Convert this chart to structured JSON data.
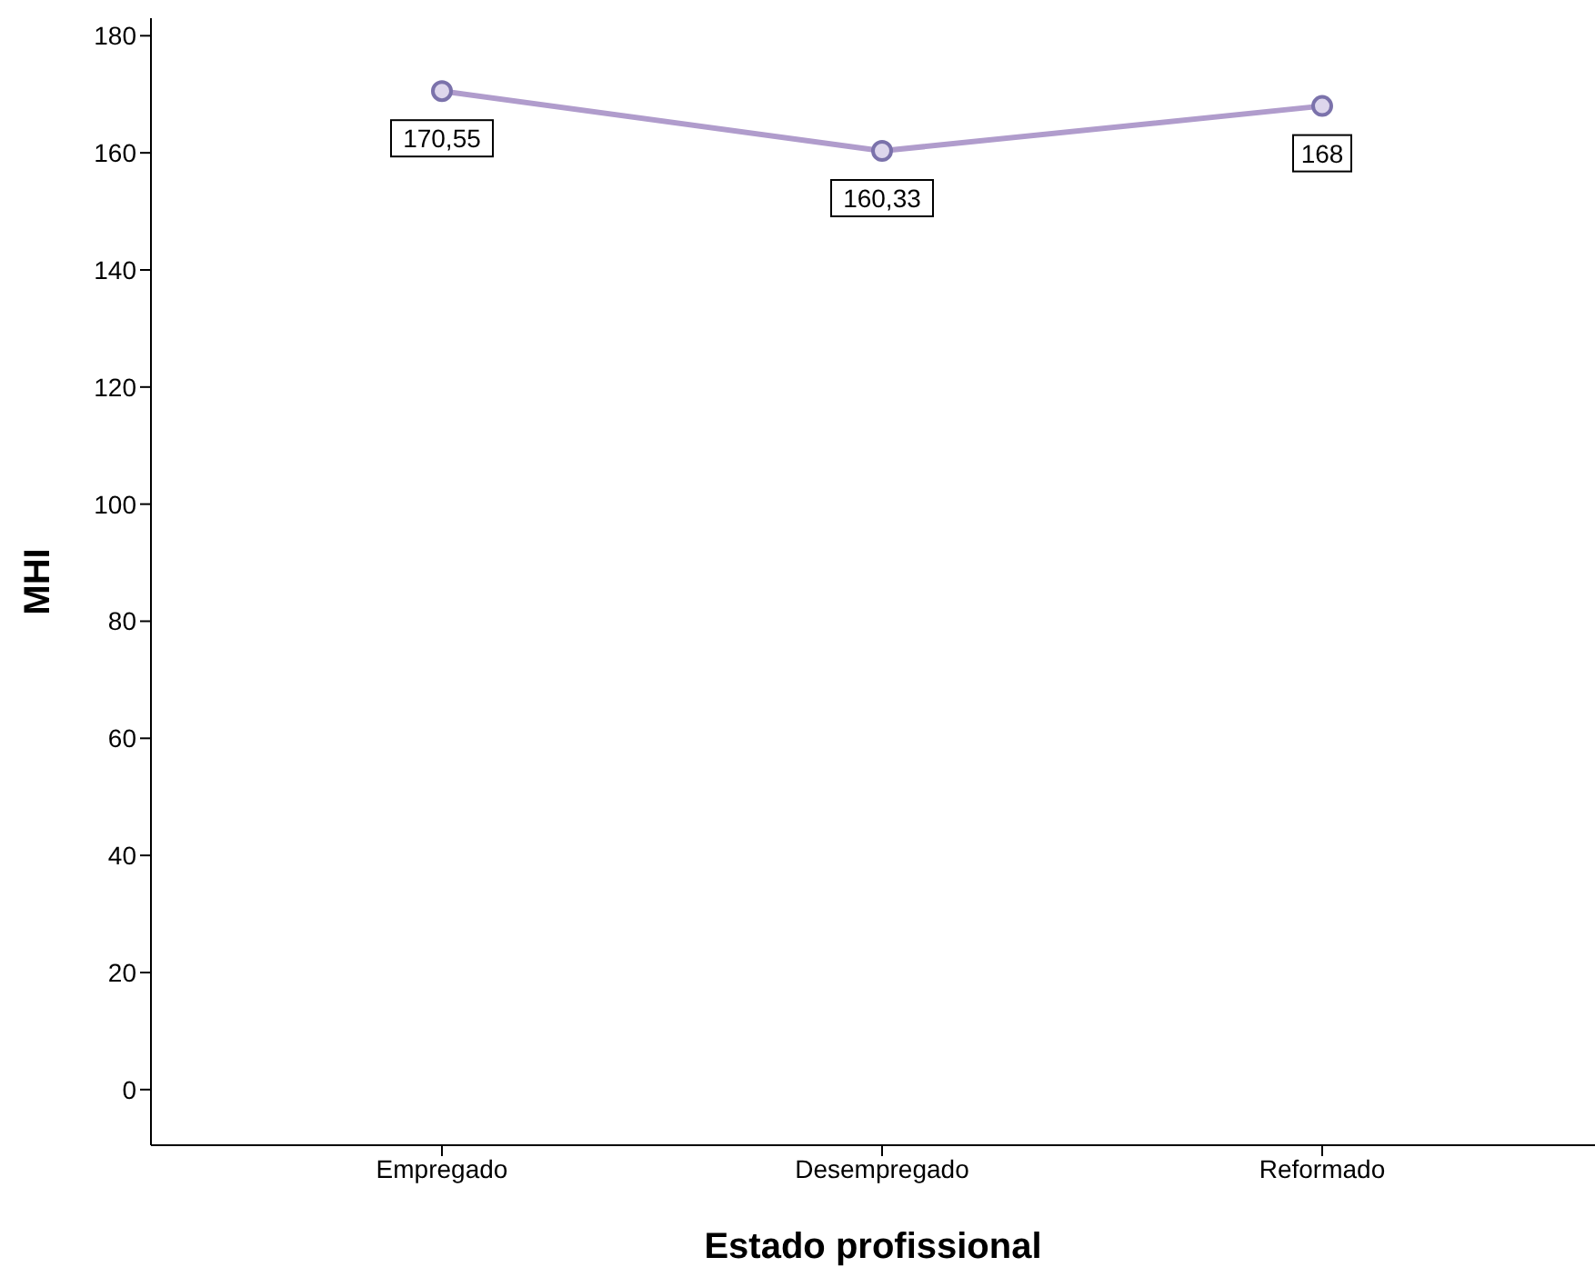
{
  "chart_data": {
    "type": "line",
    "xlabel": "Estado profissional",
    "ylabel": "MHI",
    "categories": [
      "Empregado",
      "Desempregado",
      "Reformado"
    ],
    "series": [
      {
        "color": "#b09ccc",
        "values": [
          170.55,
          160.33,
          168
        ],
        "value_labels": [
          "170,55",
          "160,33",
          "168"
        ]
      }
    ],
    "ylim": [
      -9.5,
      183
    ],
    "yticks": [
      0,
      20,
      40,
      60,
      80,
      100,
      120,
      140,
      160,
      180
    ],
    "grid": false,
    "legend": false,
    "marker": "circle",
    "line_style": "solid"
  }
}
